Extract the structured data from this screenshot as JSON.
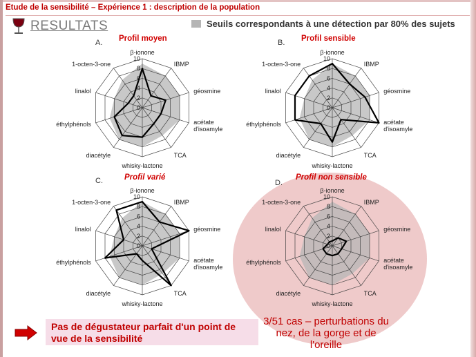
{
  "header": {
    "title": "Etude de la sensibilité – Expérience 1 : description de la population",
    "section_title": "RESULTATS",
    "icon": "wine-glass-icon"
  },
  "legend": {
    "label": "Seuils correspondants à une détection par 80% des sujets",
    "color": "#b5b5b5"
  },
  "chart_data": [
    {
      "type": "radar",
      "letter": "A.",
      "title": "Profil moyen",
      "axes": [
        "β-ionone",
        "IBMP",
        "géosmine",
        "acétate d'isoamyle",
        "TCA",
        "whisky-lactone",
        "diacétyle",
        "éthylphénols",
        "linalol",
        "1-octen-3-one"
      ],
      "rlim": [
        0,
        10
      ],
      "ticks": [
        "0",
        "2",
        "4",
        "6",
        "8",
        "10"
      ],
      "series": [
        {
          "values": [
            8,
            3,
            5,
            4,
            4,
            6,
            7,
            6,
            3,
            3
          ]
        },
        {
          "values": [
            9,
            8,
            8,
            8,
            7,
            8,
            8,
            7,
            6,
            7
          ]
        }
      ]
    },
    {
      "type": "radar",
      "letter": "B.",
      "title": "Profil sensible",
      "axes": [
        "β-ionone",
        "IBMP",
        "géosmine",
        "acétate d'isoamyle",
        "TCA",
        "whisky-lactone",
        "diacétyle",
        "éthylphénols",
        "linalol",
        "1-octen-3-one"
      ],
      "rlim": [
        0,
        10
      ],
      "ticks": [
        "0",
        "2",
        "4",
        "6",
        "8",
        "10"
      ],
      "series": [
        {
          "values": [
            9,
            6,
            7,
            10,
            3,
            7,
            4,
            8,
            8,
            8
          ]
        },
        {
          "values": [
            9,
            8,
            8,
            8,
            7,
            8,
            8,
            7,
            6,
            7
          ]
        }
      ]
    },
    {
      "type": "radar",
      "letter": "C.",
      "title": "Profil varié",
      "axes": [
        "β-ionone",
        "IBMP",
        "géosmine",
        "acétate d'isoamyle",
        "TCA",
        "whisky-lactone",
        "diacétyle",
        "éthylphénols",
        "linalol",
        "1-octen-3-one"
      ],
      "rlim": [
        0,
        10
      ],
      "ticks": [
        "0",
        "2",
        "4",
        "6",
        "8",
        "10"
      ],
      "series": [
        {
          "values": [
            9,
            6,
            10,
            2,
            10,
            3,
            2,
            8,
            4,
            9
          ]
        },
        {
          "values": [
            9,
            8,
            8,
            8,
            7,
            8,
            8,
            7,
            6,
            7
          ]
        }
      ]
    },
    {
      "type": "radar",
      "letter": "D.",
      "title": "Profil non sensible",
      "axes": [
        "β-ionone",
        "IBMP",
        "géosmine",
        "acétate d'isoamyle",
        "TCA",
        "whisky-lactone",
        "diacétyle",
        "éthylphénols",
        "linalol",
        "1-octen-3-one"
      ],
      "rlim": [
        0,
        10
      ],
      "ticks": [
        "0",
        "2",
        "4",
        "6",
        "8",
        "10"
      ],
      "series": [
        {
          "values": [
            1,
            2,
            3,
            2,
            2,
            2,
            2,
            2,
            1,
            1
          ]
        },
        {
          "values": [
            9,
            8,
            8,
            8,
            7,
            8,
            8,
            7,
            6,
            7
          ]
        }
      ]
    }
  ],
  "footer": {
    "arrow_icon": "right-arrow-icon",
    "conclusion": "Pas de dégustateur parfait d'un point de vue de la sensibilité",
    "note": "3/51 cas – perturbations du nez, de la gorge et de l'oreille"
  },
  "colors": {
    "header_red": "#c00000",
    "title_red": "#d00000",
    "highlight_pink": "#efcaca",
    "conclusion_bg": "#f6dde8",
    "threshold_gray": "#b5b5b5"
  }
}
